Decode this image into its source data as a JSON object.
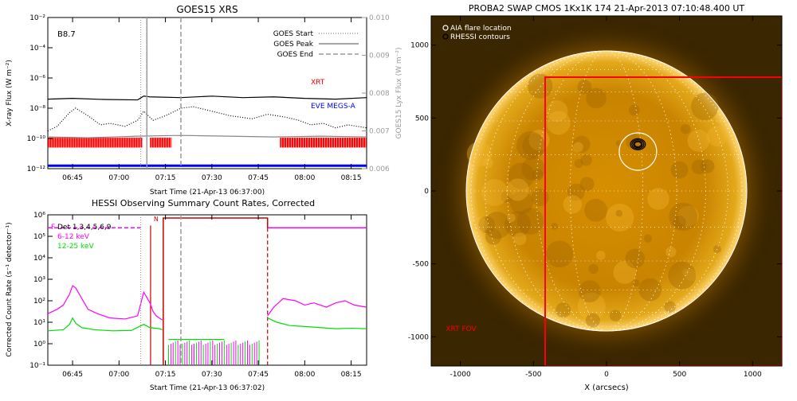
{
  "chart_data": [
    {
      "type": "line",
      "title": "GOES15 XRS",
      "xlabel": "Start Time (21-Apr-13 06:37:00)",
      "ylabel": "X-ray Flux (W m⁻²)",
      "y2label": "GOES15 Lyx Flux (W m⁻²)",
      "annotation": "B8.7",
      "xlim_min": [
        37,
        140
      ],
      "ylim_log10": [
        -12,
        -2
      ],
      "y2lim": [
        0.006,
        0.01
      ],
      "xticks": [
        "06:45",
        "07:00",
        "07:15",
        "07:30",
        "07:45",
        "08:00",
        "08:15"
      ],
      "xticks_min": [
        45,
        60,
        75,
        90,
        105,
        120,
        135
      ],
      "yticks": [
        "10⁻¹²",
        "10⁻¹⁰",
        "10⁻⁸",
        "10⁻⁶",
        "10⁻⁴",
        "10⁻²"
      ],
      "yticks_log10": [
        -12,
        -10,
        -8,
        -6,
        -4,
        -2
      ],
      "y2ticks": [
        "0.006",
        "0.007",
        "0.008",
        "0.009",
        "0.010"
      ],
      "y2ticks_val": [
        0.006,
        0.007,
        0.008,
        0.009,
        0.01
      ],
      "legend": [
        {
          "label": "GOES Start",
          "style": "dotted"
        },
        {
          "label": "GOES Peak",
          "style": "solid"
        },
        {
          "label": "GOES End",
          "style": "dashed"
        }
      ],
      "markers_min": {
        "start": 67,
        "peak": 69,
        "end": 80
      },
      "labels": {
        "xrt": "XRT",
        "eve": "EVE MEGS-A"
      },
      "series": [
        {
          "style": "solid",
          "color": "#000000",
          "x": [
            37,
            45,
            55,
            66,
            68,
            70,
            80,
            90,
            100,
            110,
            120,
            130,
            140
          ],
          "y_log10": [
            -7.4,
            -7.35,
            -7.42,
            -7.45,
            -7.2,
            -7.25,
            -7.3,
            -7.2,
            -7.3,
            -7.25,
            -7.35,
            -7.4,
            -7.3
          ]
        },
        {
          "style": "dotted",
          "color": "#000000",
          "x": [
            37,
            40,
            44,
            46,
            50,
            54,
            57,
            62,
            66,
            68,
            71,
            75,
            80,
            84,
            90,
            96,
            103,
            108,
            114,
            118,
            122,
            126,
            130,
            134,
            140
          ],
          "y_log10": [
            -9.5,
            -9.2,
            -8.3,
            -8.0,
            -8.5,
            -9.1,
            -9.0,
            -9.2,
            -8.8,
            -8.2,
            -8.8,
            -8.5,
            -8.0,
            -7.9,
            -8.2,
            -8.5,
            -8.7,
            -8.4,
            -8.6,
            -8.8,
            -9.1,
            -9.0,
            -9.3,
            -9.1,
            -9.3
          ]
        },
        {
          "style": "solid",
          "color": "#888888",
          "x": [
            37,
            50,
            66,
            80,
            95,
            110,
            125,
            140
          ],
          "y_log10": [
            -9.9,
            -9.95,
            -9.85,
            -9.8,
            -9.85,
            -9.9,
            -9.85,
            -9.9
          ]
        },
        {
          "style": "solid",
          "color": "#0000ff",
          "x": [
            37,
            140
          ],
          "y_log10": [
            -11.8,
            -11.8
          ]
        }
      ],
      "xrt_coverage_min": [
        [
          37,
          67.5
        ],
        [
          70,
          77
        ],
        [
          112,
          140
        ]
      ],
      "xrt_coverage_color": "#ff0000"
    },
    {
      "type": "line",
      "title": "HESSI Observing Summary Count Rates, Corrected",
      "xlabel": "Start Time (21-Apr-13 06:37:02)",
      "ylabel": "Corrected Count Rate (s⁻¹ detector⁻¹)",
      "xlim_min": [
        37,
        140
      ],
      "ylim_log10": [
        -1,
        6
      ],
      "xticks": [
        "06:45",
        "07:00",
        "07:15",
        "07:30",
        "07:45",
        "08:00",
        "08:15"
      ],
      "xticks_min": [
        45,
        60,
        75,
        90,
        105,
        120,
        135
      ],
      "yticks": [
        "10⁻¹",
        "10⁰",
        "10¹",
        "10²",
        "10³",
        "10⁴",
        "10⁵",
        "10⁶"
      ],
      "yticks_log10": [
        -1,
        0,
        1,
        2,
        3,
        4,
        5,
        6
      ],
      "legend_items": [
        {
          "label": "Det 1,3,4,5,6,9",
          "prefix": "F",
          "color": "#000000"
        },
        {
          "label": "6-12 keV",
          "color": "#ff00ff"
        },
        {
          "label": "12-25 keV",
          "color": "#00dd00"
        }
      ],
      "n_label": "N",
      "markers_min": {
        "start": 67,
        "peak": 69,
        "end": 80
      },
      "lines_red_min": [
        70.2,
        74.3
      ],
      "line_red_dashed_min": 108,
      "series": [
        {
          "name": "6-12 keV",
          "color": "#ff00ff",
          "x": [
            37,
            40,
            42,
            44,
            45,
            46,
            48,
            50,
            53,
            57,
            62,
            66,
            68,
            70,
            71,
            72,
            73,
            74
          ],
          "y_log10": [
            1.4,
            1.6,
            1.8,
            2.3,
            2.7,
            2.6,
            2.1,
            1.6,
            1.4,
            1.2,
            1.15,
            1.3,
            2.4,
            1.9,
            1.5,
            1.3,
            1.2,
            1.1
          ]
        },
        {
          "name": "6-12 keV",
          "color": "#ff00ff",
          "x": [
            108,
            110,
            113,
            117,
            120,
            123,
            127,
            130,
            133,
            136,
            140
          ],
          "y_log10": [
            1.3,
            1.7,
            2.1,
            2.0,
            1.8,
            1.9,
            1.7,
            1.9,
            2.0,
            1.8,
            1.7
          ]
        },
        {
          "name": "12-25 keV",
          "color": "#00dd00",
          "x": [
            37,
            42,
            44,
            45,
            46,
            48,
            52,
            58,
            64,
            68,
            70,
            73,
            74
          ],
          "y_log10": [
            0.6,
            0.65,
            0.9,
            1.2,
            0.95,
            0.75,
            0.65,
            0.6,
            0.62,
            0.9,
            0.75,
            0.7,
            0.65
          ]
        },
        {
          "name": "12-25 keV",
          "color": "#00dd00",
          "x": [
            108,
            111,
            115,
            120,
            125,
            130,
            135,
            140
          ],
          "y_log10": [
            1.2,
            1.0,
            0.85,
            0.8,
            0.75,
            0.7,
            0.72,
            0.7
          ]
        }
      ],
      "dropout_min": [
        75,
        108
      ],
      "attenuator_segments": [
        {
          "color": "#ff00ff",
          "x_min": [
            37,
            67
          ],
          "y_log10": 5.4,
          "style": "dashed"
        },
        {
          "color": "#ff00ff",
          "x_min": [
            108,
            140
          ],
          "y_log10": 5.4,
          "style": "solid"
        }
      ]
    },
    {
      "type": "heatmap",
      "title": "PROBA2 SWAP CMOS 1Kx1K 174 21-Apr-2013 07:10:48.400 UT",
      "xlabel": "X (arcsecs)",
      "xlim": [
        -1200,
        1200
      ],
      "ylim": [
        -1200,
        1200
      ],
      "xticks": [
        -1000,
        -500,
        0,
        500,
        1000
      ],
      "yticks": [
        -1000,
        -500,
        0,
        500,
        1000
      ],
      "legend": [
        {
          "label": "AIA flare location",
          "marker": "open-circle"
        },
        {
          "label": "RHESSI contours",
          "marker": "black-circle"
        }
      ],
      "xrt_fov": {
        "x": [
          -420,
          1200
        ],
        "y": [
          -1200,
          780
        ],
        "color": "#ff0000",
        "label": "XRT FOV"
      },
      "aia_flare": {
        "x": 215,
        "y": 270
      },
      "rhessi_source": {
        "x": 215,
        "y": 320
      },
      "solar_radius_arcsec": 960
    }
  ]
}
